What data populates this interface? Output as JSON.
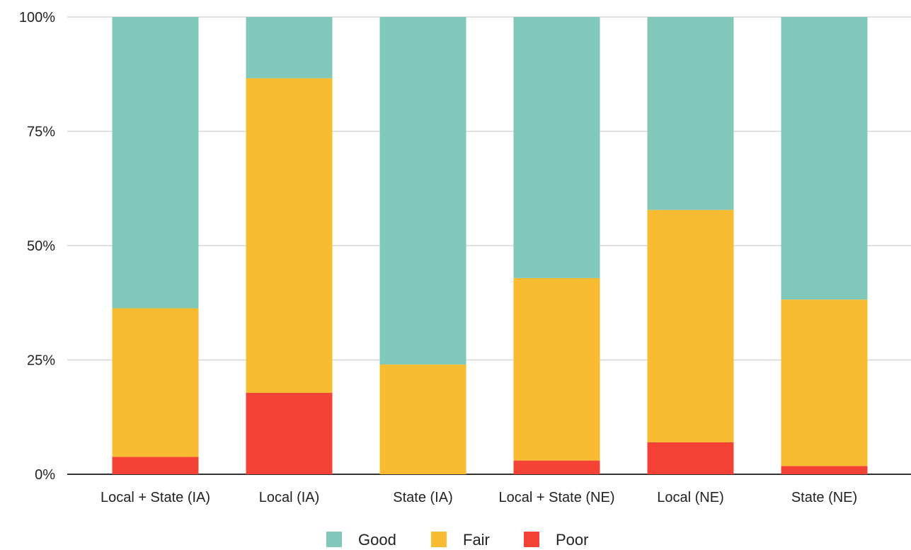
{
  "chart_data": {
    "type": "bar",
    "stacked": true,
    "percent": true,
    "categories": [
      "Local + State (IA)",
      "Local (IA)",
      "State (IA)",
      "Local + State (NE)",
      "Local (NE)",
      "State (NE)"
    ],
    "series": [
      {
        "name": "Poor",
        "color": "#f44336",
        "values": [
          3.8,
          17.8,
          0,
          3.0,
          7.0,
          1.8
        ]
      },
      {
        "name": "Fair",
        "color": "#f8bb31",
        "values": [
          32.5,
          68.8,
          24.0,
          39.9,
          50.8,
          36.4
        ]
      },
      {
        "name": "Good",
        "color": "#81c8ba",
        "values": [
          63.7,
          13.4,
          76.0,
          57.1,
          42.2,
          61.8
        ]
      }
    ],
    "yticks": [
      "0%",
      "25%",
      "50%",
      "75%",
      "100%"
    ],
    "ylim": [
      0,
      100
    ],
    "grid": true,
    "legend": {
      "position": "bottom",
      "order": [
        "Good",
        "Fair",
        "Poor"
      ]
    },
    "title": "",
    "xlabel": "",
    "ylabel": ""
  }
}
